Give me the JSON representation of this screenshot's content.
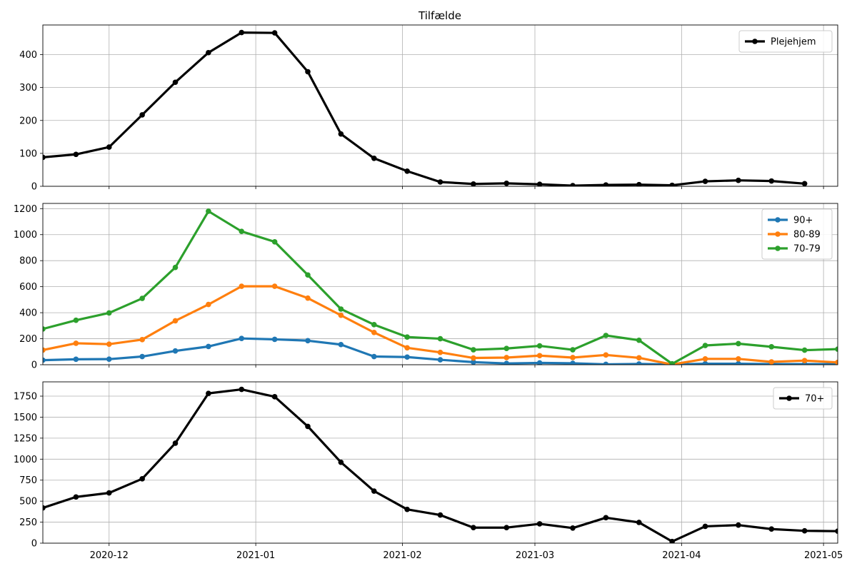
{
  "chart_data": [
    {
      "type": "line",
      "title": "Tilfælde",
      "xlabel": "",
      "ylabel": "",
      "ylim": [
        0,
        490
      ],
      "yticks": [
        0,
        100,
        200,
        300,
        400
      ],
      "grid": true,
      "legend": "top-right",
      "x": [
        "2020-11-17",
        "2020-11-24",
        "2020-12-01",
        "2020-12-08",
        "2020-12-15",
        "2020-12-22",
        "2020-12-29",
        "2021-01-05",
        "2021-01-12",
        "2021-01-19",
        "2021-01-26",
        "2021-02-02",
        "2021-02-09",
        "2021-02-16",
        "2021-02-23",
        "2021-03-02",
        "2021-03-09",
        "2021-03-16",
        "2021-03-23",
        "2021-03-30",
        "2021-04-06",
        "2021-04-13",
        "2021-04-20",
        "2021-04-27"
      ],
      "series": [
        {
          "name": "Plejehjem",
          "color": "#000000",
          "values": [
            88,
            97,
            119,
            217,
            316,
            406,
            467,
            466,
            348,
            159,
            85,
            46,
            13,
            7,
            9,
            6,
            2,
            4,
            5,
            3,
            15,
            18,
            16,
            8
          ]
        }
      ]
    },
    {
      "type": "line",
      "title": "",
      "xlabel": "",
      "ylabel": "",
      "ylim": [
        0,
        1240
      ],
      "yticks": [
        0,
        200,
        400,
        600,
        800,
        1000,
        1200
      ],
      "grid": true,
      "legend": "top-right",
      "x": [
        "2020-11-17",
        "2020-11-24",
        "2020-12-01",
        "2020-12-08",
        "2020-12-15",
        "2020-12-22",
        "2020-12-29",
        "2021-01-05",
        "2021-01-12",
        "2021-01-19",
        "2021-01-26",
        "2021-02-02",
        "2021-02-09",
        "2021-02-16",
        "2021-02-23",
        "2021-03-02",
        "2021-03-09",
        "2021-03-16",
        "2021-03-23",
        "2021-03-30",
        "2021-04-06",
        "2021-04-13",
        "2021-04-20",
        "2021-04-27",
        "2021-05-04"
      ],
      "series": [
        {
          "name": "90+",
          "color": "#1f77b4",
          "values": [
            35,
            42,
            43,
            63,
            106,
            140,
            202,
            195,
            185,
            155,
            63,
            59,
            38,
            20,
            10,
            14,
            11,
            3,
            6,
            2,
            8,
            8,
            5,
            5,
            5
          ]
        },
        {
          "name": "80-89",
          "color": "#ff7f0e",
          "values": [
            113,
            165,
            158,
            193,
            338,
            463,
            603,
            603,
            512,
            380,
            248,
            130,
            95,
            52,
            55,
            70,
            55,
            75,
            53,
            2,
            45,
            45,
            22,
            32,
            18
          ]
        },
        {
          "name": "70-79",
          "color": "#2ca02c",
          "values": [
            275,
            342,
            398,
            510,
            748,
            1180,
            1025,
            945,
            690,
            428,
            308,
            213,
            200,
            115,
            125,
            145,
            115,
            225,
            188,
            7,
            148,
            162,
            138,
            112,
            120
          ]
        }
      ]
    },
    {
      "type": "line",
      "title": "",
      "xlabel": "",
      "ylabel": "",
      "ylim": [
        0,
        1920
      ],
      "yticks": [
        0,
        250,
        500,
        750,
        1000,
        1250,
        1500,
        1750
      ],
      "grid": true,
      "legend": "top-right",
      "x": [
        "2020-11-17",
        "2020-11-24",
        "2020-12-01",
        "2020-12-08",
        "2020-12-15",
        "2020-12-22",
        "2020-12-29",
        "2021-01-05",
        "2021-01-12",
        "2021-01-19",
        "2021-01-26",
        "2021-02-02",
        "2021-02-09",
        "2021-02-16",
        "2021-02-23",
        "2021-03-02",
        "2021-03-09",
        "2021-03-16",
        "2021-03-23",
        "2021-03-30",
        "2021-04-06",
        "2021-04-13",
        "2021-04-20",
        "2021-04-27",
        "2021-05-04"
      ],
      "xticks": [
        "2020-12-01",
        "2021-01-01",
        "2021-02-01",
        "2021-03-01",
        "2021-04-01",
        "2021-05-01"
      ],
      "xticklabels": [
        "2020-12",
        "2021-01",
        "2021-02",
        "2021-03",
        "2021-04",
        "2021-05"
      ],
      "xlim": [
        "2020-11-17",
        "2021-05-04"
      ],
      "series": [
        {
          "name": "70+",
          "color": "#000000",
          "values": [
            420,
            550,
            598,
            766,
            1190,
            1783,
            1830,
            1743,
            1390,
            963,
            620,
            402,
            335,
            185,
            185,
            230,
            180,
            303,
            247,
            20,
            200,
            215,
            168,
            147,
            143
          ]
        }
      ]
    }
  ]
}
